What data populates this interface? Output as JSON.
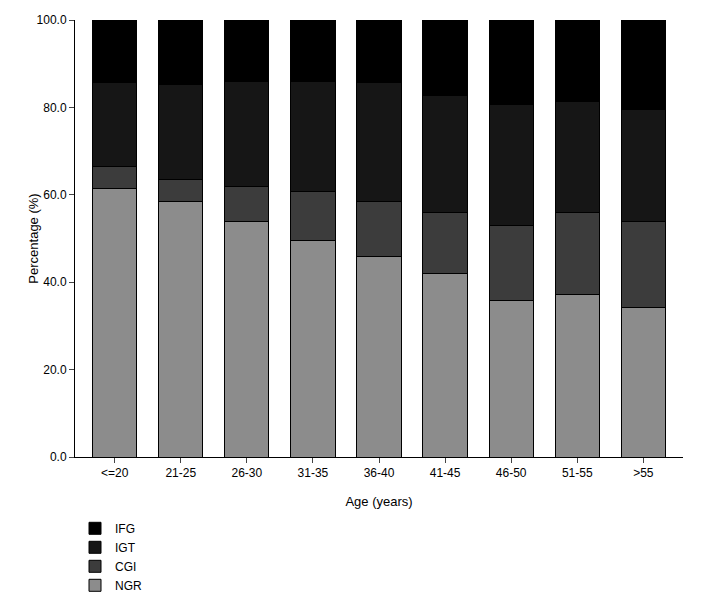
{
  "chart_data": {
    "type": "bar",
    "stacked": true,
    "x_label": "Age (years)",
    "y_label": "Percentage (%)",
    "categories": [
      "<=20",
      "21-25",
      "26-30",
      "31-35",
      "36-40",
      "41-45",
      "46-50",
      "51-55",
      ">55"
    ],
    "series": [
      {
        "name": "NGR",
        "color": "#8c8c8c",
        "values": [
          61.5,
          58.5,
          54.0,
          49.5,
          45.8,
          42.0,
          35.8,
          37.2,
          34.2
        ]
      },
      {
        "name": "CGI",
        "color": "#3c3c3c",
        "values": [
          5.0,
          5.0,
          8.0,
          11.3,
          12.7,
          14.0,
          17.2,
          18.8,
          19.8
        ]
      },
      {
        "name": "IGT",
        "color": "#161616",
        "values": [
          19.2,
          21.8,
          24.0,
          25.2,
          27.3,
          26.8,
          27.7,
          25.3,
          25.5
        ]
      },
      {
        "name": "IFG",
        "color": "#000000",
        "values": [
          14.3,
          14.7,
          14.0,
          14.0,
          14.2,
          17.2,
          19.3,
          18.7,
          20.5
        ]
      }
    ],
    "ylim": [
      0,
      100
    ],
    "yticks": [
      {
        "value": 0,
        "label": "0.0"
      },
      {
        "value": 20,
        "label": "20.0"
      },
      {
        "value": 40,
        "label": "40.0"
      },
      {
        "value": 60,
        "label": "60.0"
      },
      {
        "value": 80,
        "label": "80.0"
      },
      {
        "value": 100,
        "label": "100.0"
      }
    ],
    "grid": false,
    "legend": "bottom"
  }
}
